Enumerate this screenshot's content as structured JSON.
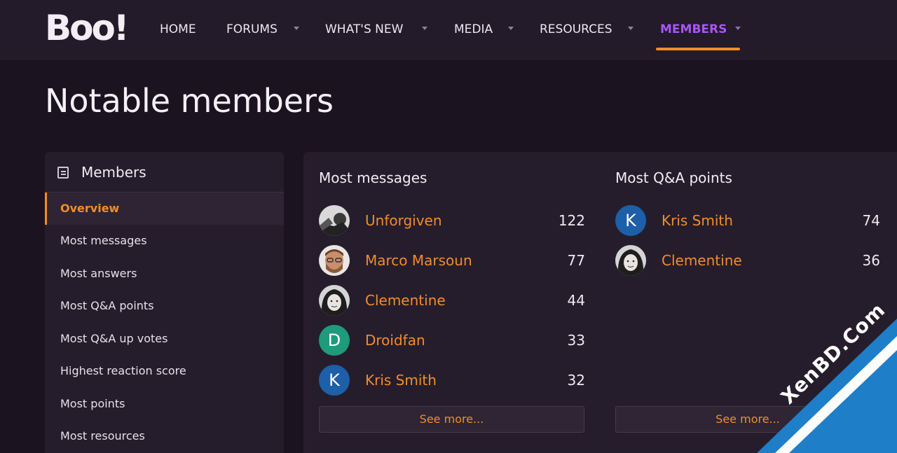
{
  "logo": "Boo!",
  "nav": {
    "items": [
      {
        "label": "HOME",
        "has_caret": false
      },
      {
        "label": "FORUMS",
        "has_caret": true
      },
      {
        "label": "WHAT'S NEW",
        "has_caret": true
      },
      {
        "label": "MEDIA",
        "has_caret": true
      },
      {
        "label": "RESOURCES",
        "has_caret": true
      },
      {
        "label": "MEMBERS",
        "has_caret": true,
        "active": true
      }
    ]
  },
  "page_title": "Notable members",
  "sidebar": {
    "title": "Members",
    "icon": "list-document-icon",
    "items": [
      {
        "label": "Overview",
        "active": true
      },
      {
        "label": "Most messages"
      },
      {
        "label": "Most answers"
      },
      {
        "label": "Most Q&A points"
      },
      {
        "label": "Most Q&A up votes"
      },
      {
        "label": "Highest reaction score"
      },
      {
        "label": "Most points"
      },
      {
        "label": "Most resources"
      }
    ]
  },
  "most_messages": {
    "title": "Most messages",
    "members": [
      {
        "name": "Unforgiven",
        "count": "122",
        "avatar": "photo"
      },
      {
        "name": "Marco Marsoun",
        "count": "77",
        "avatar": "photo"
      },
      {
        "name": "Clementine",
        "count": "44",
        "avatar": "photo"
      },
      {
        "name": "Droidfan",
        "count": "33",
        "avatar_letter": "D",
        "avatar_color": "#1f9a7c"
      },
      {
        "name": "Kris Smith",
        "count": "32",
        "avatar_letter": "K",
        "avatar_color": "#1d5fa8"
      }
    ],
    "see_more": "See more..."
  },
  "most_qa_points": {
    "title": "Most Q&A points",
    "members": [
      {
        "name": "Kris Smith",
        "count": "74",
        "avatar_letter": "K",
        "avatar_color": "#1d5fa8"
      },
      {
        "name": "Clementine",
        "count": "36",
        "avatar": "photo"
      }
    ],
    "see_more": "See more..."
  },
  "watermark": "XenBD.Com",
  "colors": {
    "accent": "#f28c28",
    "nav_active": "#a855f7",
    "background": "#1b1320",
    "panel": "#261d2c"
  }
}
